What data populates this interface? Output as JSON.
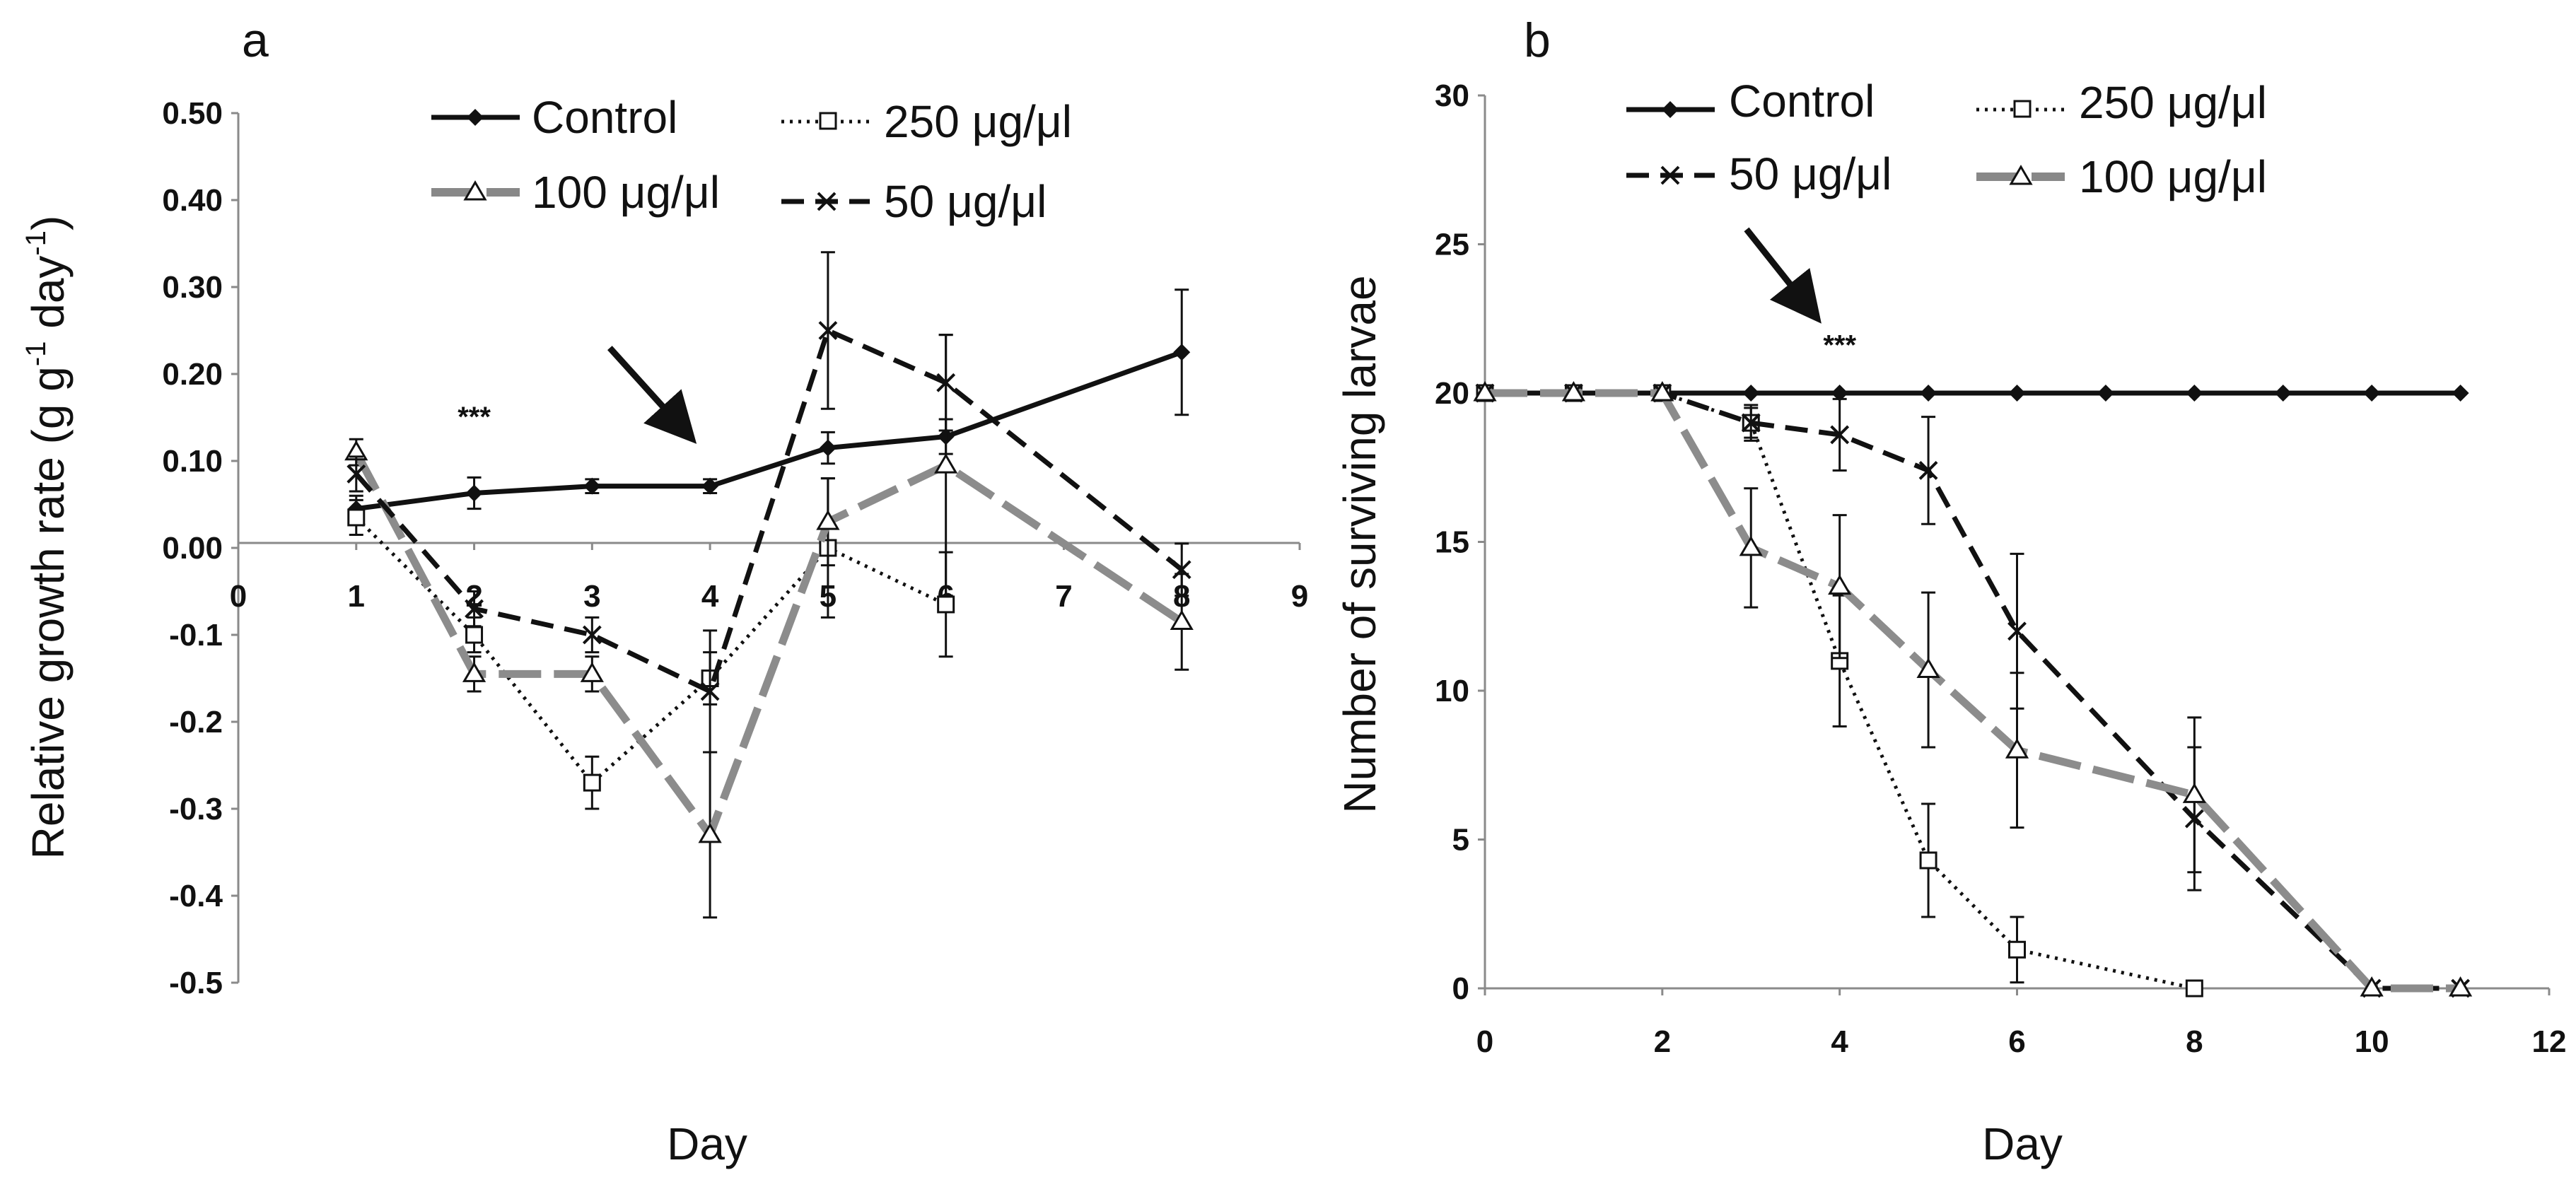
{
  "chart_data": [
    {
      "type": "line",
      "panel_label": "a",
      "xlabel": "Day",
      "ylabel": "Relative growth rate  (g g",
      "ylabel_sup1": "-1",
      "ylabel_mid": " day",
      "ylabel_sup2": "-1",
      "ylabel_end": ")",
      "xlim": [
        0,
        9
      ],
      "ylim": [
        -0.5,
        0.5
      ],
      "x_ticks": [
        "0",
        "1",
        "2",
        "3",
        "4",
        "5",
        "6",
        "7",
        "8",
        "9"
      ],
      "y_ticks": [
        "0.50",
        "0.40",
        "0.30",
        "0.20",
        "0.10",
        "0.00",
        "-0.1",
        "-0.2",
        "-0.3",
        "-0.4",
        "-0.5"
      ],
      "y_tick_values": [
        0.5,
        0.4,
        0.3,
        0.2,
        0.1,
        0.0,
        -0.1,
        -0.2,
        -0.3,
        -0.4,
        -0.5
      ],
      "annotation": "***",
      "annotation_pos": [
        2,
        0.14
      ],
      "arrow_from": [
        3.15,
        0.23
      ],
      "arrow_to": [
        3.85,
        0.125
      ],
      "series": [
        {
          "name": "Control",
          "style": "solid",
          "marker": "diamond",
          "x": [
            1,
            2,
            3,
            4,
            5,
            6,
            8
          ],
          "y": [
            0.045,
            0.063,
            0.071,
            0.071,
            0.115,
            0.128,
            0.225
          ],
          "err": [
            0.015,
            0.018,
            0.008,
            0.008,
            0.018,
            0.02,
            0.072
          ]
        },
        {
          "name": "250 μg/μl",
          "style": "dotted",
          "marker": "square",
          "x": [
            1,
            2,
            3,
            4,
            5,
            6
          ],
          "y": [
            0.035,
            -0.1,
            -0.27,
            -0.15,
            0.0,
            -0.065
          ],
          "err": [
            0.02,
            0.02,
            0.03,
            0.03,
            0.08,
            0.06
          ]
        },
        {
          "name": "100 μg/μl",
          "style": "longdash",
          "marker": "triangle",
          "x": [
            1,
            2,
            3,
            4,
            5,
            6,
            8
          ],
          "y": [
            0.11,
            -0.145,
            -0.145,
            -0.33,
            0.03,
            0.095,
            -0.085
          ],
          "err": [
            0.015,
            0.02,
            0.02,
            0.095,
            0.05,
            0.15,
            0.055
          ]
        },
        {
          "name": "50 μg/μl",
          "style": "dashed",
          "marker": "x",
          "x": [
            1,
            2,
            3,
            4,
            5,
            6,
            8
          ],
          "y": [
            0.085,
            -0.07,
            -0.1,
            -0.165,
            0.25,
            0.19,
            -0.025
          ],
          "err": [
            0.02,
            0.02,
            0.02,
            0.07,
            0.09,
            0.055,
            0.03
          ]
        }
      ]
    },
    {
      "type": "line",
      "panel_label": "b",
      "xlabel": "Day",
      "ylabel": "Number of surviving larvae",
      "xlim": [
        0,
        12
      ],
      "ylim": [
        0,
        30
      ],
      "x_ticks": [
        "0",
        "2",
        "4",
        "6",
        "8",
        "10",
        "12"
      ],
      "x_tick_values": [
        0,
        2,
        4,
        6,
        8,
        10,
        12
      ],
      "y_ticks": [
        "30",
        "25",
        "20",
        "15",
        "10",
        "5",
        "0"
      ],
      "y_tick_values": [
        30,
        25,
        20,
        15,
        10,
        5,
        0
      ],
      "annotation": "***",
      "annotation_pos": [
        4.0,
        21.3
      ],
      "arrow_from": [
        2.95,
        25.5
      ],
      "arrow_to": [
        3.75,
        22.5
      ],
      "series": [
        {
          "name": "Control",
          "style": "solid",
          "marker": "diamond",
          "x": [
            0,
            1,
            2,
            3,
            4,
            5,
            6,
            7,
            8,
            9,
            10,
            11
          ],
          "y": [
            20,
            20,
            20,
            20,
            20,
            20,
            20,
            20,
            20,
            20,
            20,
            20
          ],
          "err": [
            0,
            0,
            0,
            0,
            0,
            0,
            0,
            0,
            0,
            0,
            0,
            0
          ]
        },
        {
          "name": "250 μg/μl",
          "style": "dotted",
          "marker": "square",
          "x": [
            0,
            1,
            2,
            3,
            4,
            5,
            6,
            8
          ],
          "y": [
            20,
            20,
            20,
            19,
            11,
            4.3,
            1.3,
            0
          ],
          "err": [
            0,
            0,
            0,
            0.6,
            2.2,
            1.9,
            1.1,
            0
          ]
        },
        {
          "name": "50 μg/μl",
          "style": "dashed",
          "marker": "x",
          "x": [
            0,
            1,
            2,
            3,
            4,
            5,
            6,
            8,
            10,
            11
          ],
          "y": [
            20,
            20,
            20,
            19,
            18.6,
            17.4,
            12,
            5.7,
            0,
            0
          ],
          "err": [
            0,
            0,
            0,
            0.5,
            1.2,
            1.8,
            2.6,
            2.4,
            0,
            0
          ]
        },
        {
          "name": "100 μg/μl",
          "style": "longdash",
          "marker": "triangle",
          "x": [
            0,
            1,
            2,
            3,
            4,
            5,
            6,
            8,
            10,
            11
          ],
          "y": [
            20,
            20,
            20,
            14.8,
            13.5,
            10.7,
            8,
            6.5,
            0,
            0
          ],
          "err": [
            0,
            0,
            0,
            2,
            2.4,
            2.6,
            2.6,
            2.6,
            0,
            0
          ]
        }
      ]
    }
  ]
}
